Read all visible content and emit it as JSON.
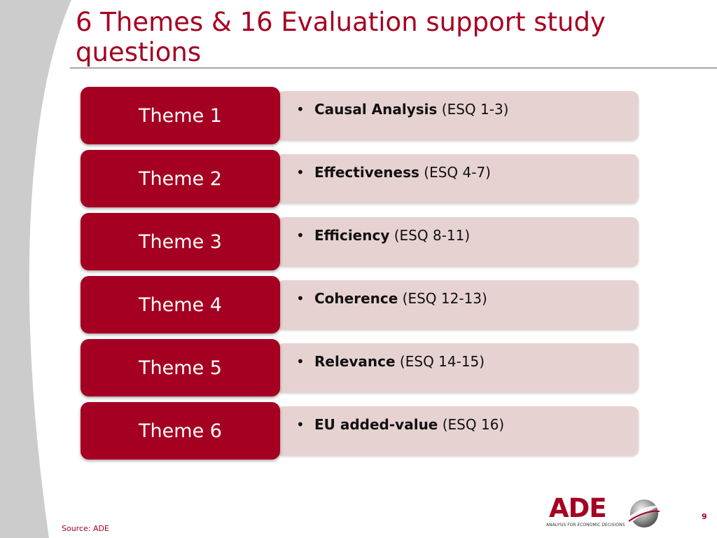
{
  "slide": {
    "title": "6 Themes & 16 Evaluation support study questions",
    "source": "Source: ADE",
    "page_number": "9"
  },
  "themes": [
    {
      "label": "Theme 1",
      "bullet": "•",
      "topic": "Causal Analysis",
      "detail": " (ESQ 1-3)"
    },
    {
      "label": "Theme 2",
      "bullet": "•",
      "topic": "Effectiveness",
      "detail": " (ESQ 4-7)"
    },
    {
      "label": "Theme 3",
      "bullet": "•",
      "topic": "Efficiency",
      "detail": " (ESQ 8-11)"
    },
    {
      "label": "Theme 4",
      "bullet": "•",
      "topic": "Coherence",
      "detail": " (ESQ 12-13)"
    },
    {
      "label": "Theme 5",
      "bullet": "•",
      "topic": "Relevance",
      "detail": " (ESQ 14-15)"
    },
    {
      "label": "Theme 6",
      "bullet": "•",
      "topic": "EU added-value",
      "detail": " (ESQ 16)"
    }
  ],
  "logo": {
    "wordmark": "ADE",
    "tagline": "ANALYSIS FOR ECONOMIC DECISIONS"
  },
  "colors": {
    "accent": "#a50021",
    "detail_fill": "#e7d2d2",
    "background_curve": "#cccccc",
    "title_rule": "#a8a8a8"
  }
}
